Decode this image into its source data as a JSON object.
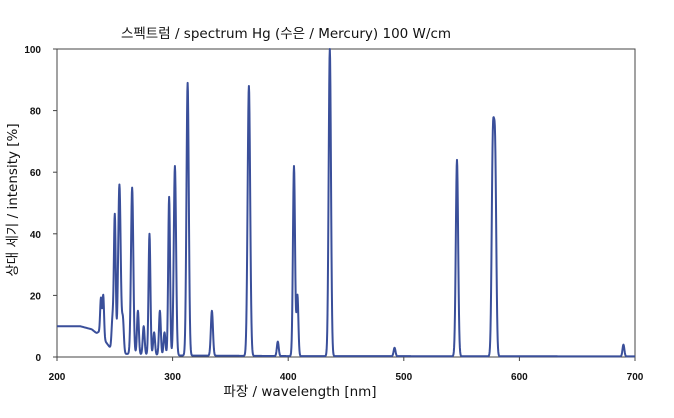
{
  "chart_data": {
    "type": "line",
    "title": "스펙트럼 / spectrum Hg (수은 / Mercury) 100 W/cm",
    "xlabel": "파장 / wavelength [nm]",
    "ylabel": "상대 세기 / intensity [%]",
    "xlim": [
      200,
      700
    ],
    "ylim": [
      0,
      100
    ],
    "x_ticks": [
      200,
      300,
      400,
      500,
      600,
      700
    ],
    "y_ticks": [
      0,
      20,
      40,
      60,
      80,
      100
    ],
    "x_tick_labels": [
      "200",
      "300",
      "400",
      "500",
      "600",
      "700"
    ],
    "y_tick_labels": [
      "0",
      "20",
      "40",
      "60",
      "80",
      "100"
    ],
    "grid": false,
    "legend": "none",
    "line_color": "#3a4f9a",
    "baseline": [
      {
        "x": 200,
        "y": 10
      },
      {
        "x": 220,
        "y": 10
      },
      {
        "x": 230,
        "y": 9
      },
      {
        "x": 240,
        "y": 6
      },
      {
        "x": 248,
        "y": 2
      },
      {
        "x": 260,
        "y": 1
      },
      {
        "x": 300,
        "y": 0.5
      },
      {
        "x": 400,
        "y": 0.3
      },
      {
        "x": 700,
        "y": 0.2
      }
    ],
    "peaks": [
      {
        "x": 232,
        "y": 4,
        "w": 0.9
      },
      {
        "x": 236,
        "y": 8,
        "w": 0.9
      },
      {
        "x": 238,
        "y": 19,
        "w": 0.7
      },
      {
        "x": 240,
        "y": 20,
        "w": 0.7
      },
      {
        "x": 248,
        "y": 12,
        "w": 0.8
      },
      {
        "x": 250,
        "y": 46,
        "w": 0.8
      },
      {
        "x": 254,
        "y": 56,
        "w": 1.1
      },
      {
        "x": 257,
        "y": 12,
        "w": 0.8
      },
      {
        "x": 265,
        "y": 55,
        "w": 1.0
      },
      {
        "x": 270,
        "y": 15,
        "w": 0.8
      },
      {
        "x": 275,
        "y": 10,
        "w": 0.8
      },
      {
        "x": 280,
        "y": 40,
        "w": 0.8
      },
      {
        "x": 284,
        "y": 8,
        "w": 0.8
      },
      {
        "x": 289,
        "y": 15,
        "w": 0.8
      },
      {
        "x": 293,
        "y": 8,
        "w": 0.8
      },
      {
        "x": 297,
        "y": 52,
        "w": 0.8
      },
      {
        "x": 302,
        "y": 62,
        "w": 1.0
      },
      {
        "x": 313,
        "y": 89,
        "w": 1.0
      },
      {
        "x": 334,
        "y": 15,
        "w": 0.9
      },
      {
        "x": 366,
        "y": 88,
        "w": 1.1
      },
      {
        "x": 391,
        "y": 5,
        "w": 0.8
      },
      {
        "x": 405,
        "y": 62,
        "w": 0.9
      },
      {
        "x": 408,
        "y": 20,
        "w": 0.8
      },
      {
        "x": 436,
        "y": 100,
        "w": 1.0
      },
      {
        "x": 492,
        "y": 3,
        "w": 0.8
      },
      {
        "x": 546,
        "y": 64,
        "w": 1.0
      },
      {
        "x": 577,
        "y": 65,
        "w": 1.0
      },
      {
        "x": 579,
        "y": 63,
        "w": 1.0
      },
      {
        "x": 690,
        "y": 4,
        "w": 0.8
      }
    ]
  }
}
